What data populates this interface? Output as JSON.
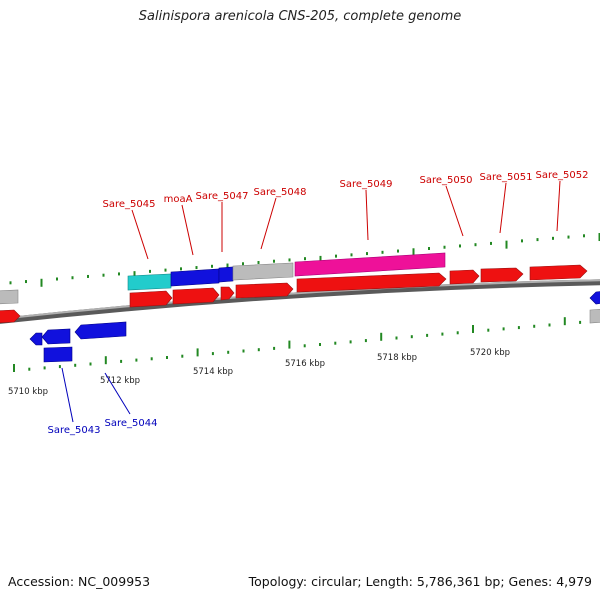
{
  "title": "Salinispora arenicola CNS-205, complete genome",
  "footer": {
    "accession": "Accession: NC_009953",
    "summary": "Topology: circular; Length: 5,786,361 bp; Genes: 4,979"
  },
  "colors": {
    "cds_forward": "#ee1111",
    "cds_reverse": "#1111dd",
    "rna": "#22cccc",
    "other": "#bbbbbb",
    "highlight": "#ee1199",
    "backbone": "#888888",
    "tick": "#228822",
    "label_forward": "#cc0000",
    "label_reverse": "#0000bb"
  },
  "kbp_labels": [
    "5710 kbp",
    "5712 kbp",
    "5714 kbp",
    "5716 kbp",
    "5718 kbp",
    "5720 kbp"
  ],
  "gene_labels_forward": [
    "Sare_5045",
    "moaA",
    "Sare_5047",
    "Sare_5048",
    "Sare_5049",
    "Sare_5050",
    "Sare_5051",
    "Sare_5052"
  ],
  "gene_labels_reverse": [
    "Sare_5043",
    "Sare_5044"
  ]
}
